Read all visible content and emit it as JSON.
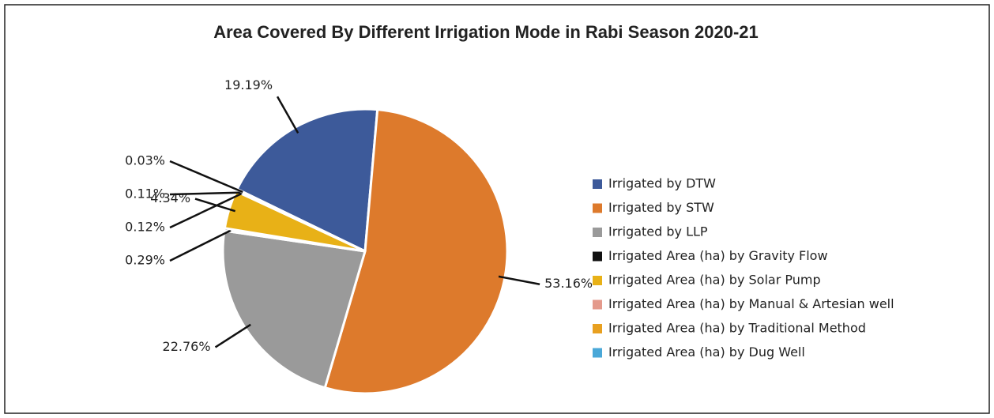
{
  "chart_data": {
    "type": "pie",
    "title": "Area Covered By Different Irrigation Mode in Rabi Season 2020-21",
    "categories": [
      "Irrigated by DTW",
      "Irrigated by STW",
      "Irrigated by LLP",
      "Irrigated Area (ha) by Gravity Flow",
      "Irrigated Area (ha) by Solar Pump",
      "Irrigated Area (ha) by Manual & Artesian well",
      "Irrigated Area (ha) by Traditional Method",
      "Irrigated Area (ha) by Dug Well"
    ],
    "values": [
      19.19,
      53.16,
      22.76,
      0.29,
      4.34,
      0.12,
      0.11,
      0.03
    ],
    "value_labels": [
      "19.19%",
      "53.16%",
      "22.76%",
      "0.29%",
      "4.34%",
      "0.12%",
      "0.11%",
      "0.03%"
    ],
    "colors": [
      "#3d5a9a",
      "#dd7a2c",
      "#9a9a9a",
      "#111111",
      "#e8b117",
      "#e49a8c",
      "#e8a020",
      "#4aa8d8"
    ],
    "legend": "right"
  }
}
